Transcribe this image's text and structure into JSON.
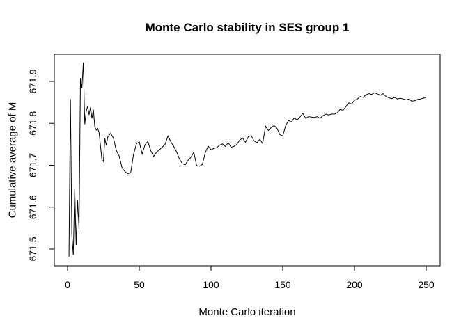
{
  "figure": {
    "background": "#ffffff",
    "axis_color": "#000000"
  },
  "chart_data": {
    "type": "line",
    "title": "Monte Carlo stability in SES group 1",
    "xlabel": "Monte Carlo iteration",
    "ylabel": "Cumulative average of M",
    "x_ticks": [
      0,
      50,
      100,
      150,
      200,
      250
    ],
    "y_ticks": [
      671.5,
      671.6,
      671.7,
      671.8,
      671.9
    ],
    "xlim": [
      -9,
      260
    ],
    "ylim": [
      671.46,
      671.965
    ],
    "grid": false,
    "legend": null,
    "series": [
      {
        "name": "cumulative average of M",
        "color": "#000000",
        "x": [
          1,
          2,
          3,
          4,
          5,
          6,
          7,
          8,
          9,
          10,
          11,
          12,
          13,
          14,
          15,
          16,
          17,
          18,
          19,
          20,
          21,
          22,
          23,
          24,
          25,
          26,
          27,
          28,
          29,
          30,
          32,
          34,
          36,
          38,
          40,
          42,
          44,
          46,
          48,
          50,
          52,
          54,
          56,
          58,
          60,
          62,
          64,
          66,
          68,
          70,
          72,
          74,
          76,
          78,
          80,
          82,
          84,
          86,
          88,
          90,
          92,
          94,
          96,
          98,
          100,
          102,
          104,
          106,
          108,
          110,
          112,
          114,
          116,
          118,
          120,
          122,
          124,
          126,
          128,
          130,
          132,
          134,
          136,
          138,
          140,
          142,
          144,
          146,
          148,
          150,
          152,
          154,
          156,
          158,
          160,
          162,
          164,
          166,
          168,
          170,
          172,
          174,
          176,
          178,
          180,
          182,
          184,
          186,
          188,
          190,
          192,
          194,
          196,
          198,
          200,
          202,
          204,
          206,
          208,
          210,
          212,
          214,
          216,
          218,
          220,
          222,
          224,
          226,
          228,
          230,
          232,
          234,
          236,
          238,
          240,
          242,
          244,
          246,
          248,
          250
        ],
        "y": [
          671.482,
          671.858,
          671.533,
          671.486,
          671.643,
          671.51,
          671.616,
          671.549,
          671.908,
          671.884,
          671.945,
          671.798,
          671.828,
          671.841,
          671.82,
          671.838,
          671.812,
          671.833,
          671.792,
          671.784,
          671.788,
          671.778,
          671.745,
          671.712,
          671.709,
          671.764,
          671.748,
          671.767,
          671.772,
          671.776,
          671.765,
          671.735,
          671.722,
          671.694,
          671.685,
          671.68,
          671.682,
          671.726,
          671.751,
          671.756,
          671.727,
          671.749,
          671.757,
          671.735,
          671.721,
          671.731,
          671.737,
          671.743,
          671.75,
          671.77,
          671.756,
          671.745,
          671.732,
          671.715,
          671.704,
          671.701,
          671.712,
          671.719,
          671.731,
          671.699,
          671.698,
          671.702,
          671.73,
          671.746,
          671.737,
          671.74,
          671.742,
          671.748,
          671.751,
          671.745,
          671.754,
          671.743,
          671.745,
          671.75,
          671.76,
          671.765,
          671.755,
          671.768,
          671.771,
          671.758,
          671.754,
          671.762,
          671.752,
          671.793,
          671.783,
          671.79,
          671.795,
          671.788,
          671.773,
          671.77,
          671.794,
          671.807,
          671.803,
          671.813,
          671.808,
          671.815,
          671.824,
          671.812,
          671.816,
          671.815,
          671.814,
          671.816,
          671.812,
          671.818,
          671.822,
          671.82,
          671.822,
          671.822,
          671.825,
          671.833,
          671.831,
          671.84,
          671.849,
          671.846,
          671.855,
          671.858,
          671.864,
          671.862,
          671.868,
          671.871,
          671.869,
          671.873,
          671.87,
          671.867,
          671.871,
          671.864,
          671.861,
          671.859,
          671.862,
          671.858,
          671.86,
          671.858,
          671.856,
          671.858,
          671.853,
          671.854,
          671.857,
          671.858,
          671.86,
          671.862
        ]
      }
    ]
  }
}
